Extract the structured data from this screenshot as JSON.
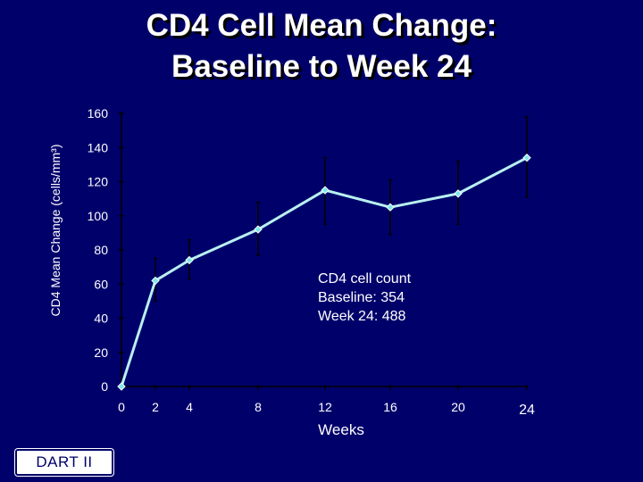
{
  "title": {
    "line1": "CD4 Cell Mean Change:",
    "line2": "Baseline to Week 24"
  },
  "badge_label": "DART II",
  "annotation": {
    "line1": "CD4 cell count",
    "line2": "Baseline: 354",
    "line3": "Week 24: 488"
  },
  "colors": {
    "background": "#00006b",
    "text": "#ffffff",
    "series_line": "#b8f0f0",
    "marker": "#7ee8e8"
  },
  "chart_data": {
    "type": "line",
    "title": "CD4 Cell Mean Change: Baseline to Week 24",
    "xlabel": "Weeks",
    "ylabel": "CD4 Mean Change (cells/mm³)",
    "xlim": [
      0,
      24
    ],
    "ylim": [
      0,
      160
    ],
    "x_ticks": [
      0,
      2,
      4,
      8,
      12,
      16,
      20,
      24
    ],
    "y_ticks": [
      0,
      20,
      40,
      60,
      80,
      100,
      120,
      140,
      160
    ],
    "grid": false,
    "series": [
      {
        "x": [
          0,
          2,
          4,
          8,
          12,
          16,
          20,
          24
        ],
        "y": [
          0,
          62,
          74,
          92,
          115,
          105,
          113,
          134
        ],
        "error_low": [
          0,
          50,
          63,
          77,
          95,
          89,
          95,
          111
        ],
        "error_high": [
          0,
          75,
          86,
          108,
          134,
          121,
          132,
          158
        ]
      }
    ]
  }
}
